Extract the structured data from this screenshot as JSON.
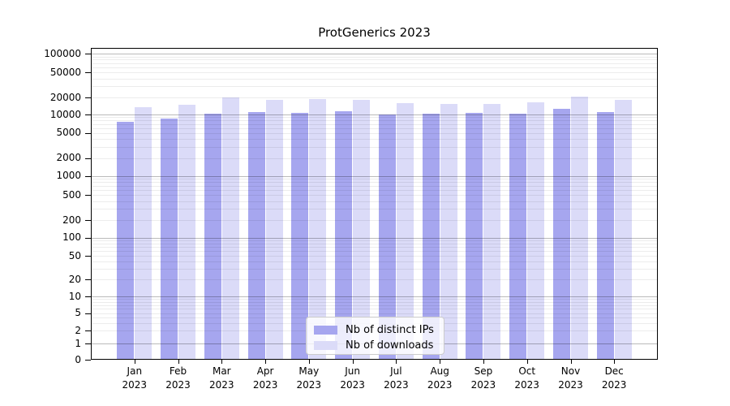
{
  "chart_data": {
    "type": "bar",
    "title": "ProtGenerics 2023",
    "categories": [
      "Jan 2023",
      "Feb 2023",
      "Mar 2023",
      "Apr 2023",
      "May 2023",
      "Jun 2023",
      "Jul 2023",
      "Aug 2023",
      "Sep 2023",
      "Oct 2023",
      "Nov 2023",
      "Dec 2023"
    ],
    "x_months": [
      "Jan",
      "Feb",
      "Mar",
      "Apr",
      "May",
      "Jun",
      "Jul",
      "Aug",
      "Sep",
      "Oct",
      "Nov",
      "Dec"
    ],
    "x_year": "2023",
    "series": [
      {
        "name": "Nb of distinct IPs",
        "color": "#a6a6ef",
        "values": [
          7600,
          8600,
          10400,
          11000,
          10600,
          11500,
          10000,
          10400,
          10700,
          10200,
          12500,
          10900
        ]
      },
      {
        "name": "Nb of downloads",
        "color": "#dbdbf8",
        "values": [
          13400,
          14800,
          19900,
          17900,
          18500,
          18250,
          16000,
          15500,
          15500,
          16500,
          20400,
          17900
        ]
      }
    ],
    "yscale": "log",
    "ylim": [
      0,
      120000
    ],
    "y_tick_labels": [
      "100000",
      "50000",
      "20000",
      "10000",
      "5000",
      "2000",
      "1000",
      "500",
      "200",
      "100",
      "50",
      "20",
      "10",
      "5",
      "2",
      "1",
      "0"
    ],
    "grid": true,
    "legend_position": "lower center inside"
  }
}
